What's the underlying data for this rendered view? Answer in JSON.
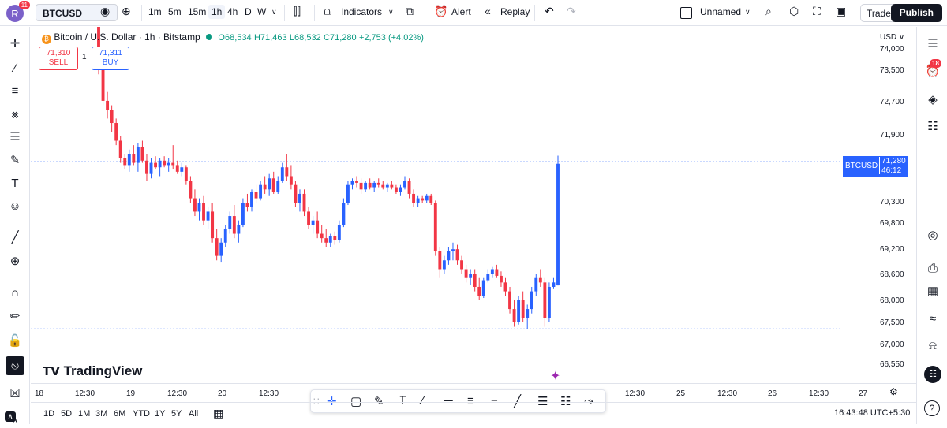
{
  "header": {
    "avatar_letter": "R",
    "avatar_badge": "11",
    "symbol": "BTCUSD",
    "timeframes": [
      "1m",
      "5m",
      "15m",
      "1h",
      "4h",
      "D",
      "W"
    ],
    "active_timeframe": "1h",
    "indicators_label": "Indicators",
    "alert_label": "Alert",
    "replay_label": "Replay",
    "layout_name": "Unnamed",
    "trade_label": "Trade",
    "publish_label": "Publish"
  },
  "legend": {
    "title": "Bitcoin / U.S. Dollar · 1h · Bitstamp",
    "open": "O68,534",
    "high": "H71,463",
    "low": "L68,532",
    "close": "C71,280",
    "change": "+2,753 (+4.02%)"
  },
  "trade_panel": {
    "sell_price": "71,310",
    "sell_label": "SELL",
    "qty": "1",
    "buy_price": "71,311",
    "buy_label": "BUY"
  },
  "price_axis": {
    "currency": "USD",
    "labels": [
      "74,000",
      "73,500",
      "72,700",
      "71,900",
      "70,300",
      "69,800",
      "69,200",
      "68,600",
      "68,000",
      "67,500",
      "67,000",
      "66,550"
    ],
    "current_symbol": "BTCUSD",
    "current_price": "71,280",
    "countdown": "46:12"
  },
  "time_axis": {
    "labels": [
      "18",
      "12:30",
      "19",
      "12:30",
      "20",
      "12:30",
      "12:30",
      "25",
      "12:30",
      "26",
      "12:30",
      "27"
    ]
  },
  "ranges": [
    "1D",
    "5D",
    "1M",
    "3M",
    "6M",
    "YTD",
    "1Y",
    "5Y",
    "All"
  ],
  "clock": "16:43:48 UTC+5:30",
  "branding": "TradingView",
  "right_badge": "18",
  "colors": {
    "up": "#2962ff",
    "down": "#f23645",
    "accent": "#2962ff"
  },
  "chart_data": {
    "type": "candlestick",
    "note_series": "BTCUSD 1h",
    "ohlc": [
      [
        74600,
        74700,
        73300,
        73400
      ],
      [
        73400,
        73600,
        72600,
        72700
      ],
      [
        72700,
        72900,
        72300,
        72500
      ],
      [
        72500,
        72600,
        72000,
        72200
      ],
      [
        72200,
        72300,
        71700,
        71800
      ],
      [
        71800,
        71900,
        71300,
        71400
      ],
      [
        71400,
        71500,
        71150,
        71250
      ],
      [
        71250,
        71600,
        71100,
        71500
      ],
      [
        71500,
        71700,
        71250,
        71300
      ],
      [
        71300,
        71750,
        71100,
        71650
      ],
      [
        71650,
        71800,
        71300,
        71350
      ],
      [
        71350,
        71500,
        70900,
        71050
      ],
      [
        71050,
        71400,
        70950,
        71300
      ],
      [
        71300,
        71450,
        71150,
        71200
      ],
      [
        71200,
        71400,
        71000,
        71350
      ],
      [
        71350,
        71450,
        71200,
        71250
      ],
      [
        71250,
        71400,
        71100,
        71300
      ],
      [
        71300,
        71700,
        71150,
        71250
      ],
      [
        71250,
        71350,
        71050,
        71100
      ],
      [
        71100,
        71300,
        71000,
        71200
      ],
      [
        71200,
        71250,
        70800,
        70900
      ],
      [
        70900,
        71000,
        70400,
        70500
      ],
      [
        70500,
        70700,
        70100,
        70200
      ],
      [
        70200,
        70500,
        70000,
        70400
      ],
      [
        70400,
        70550,
        69900,
        70000
      ],
      [
        70000,
        70300,
        69800,
        70200
      ],
      [
        70200,
        70400,
        69500,
        69600
      ],
      [
        69600,
        69800,
        69100,
        69200
      ],
      [
        69200,
        69600,
        69050,
        69500
      ],
      [
        69500,
        69900,
        69400,
        69800
      ],
      [
        69800,
        70200,
        69700,
        70100
      ],
      [
        70100,
        70350,
        69600,
        69700
      ],
      [
        69700,
        70000,
        69500,
        69900
      ],
      [
        69900,
        70500,
        69850,
        70400
      ],
      [
        70400,
        70600,
        70200,
        70300
      ],
      [
        70300,
        70700,
        70200,
        70650
      ],
      [
        70650,
        70800,
        70400,
        70500
      ],
      [
        70500,
        70900,
        70450,
        70800
      ],
      [
        70800,
        71000,
        70600,
        70700
      ],
      [
        70700,
        71050,
        70550,
        70950
      ],
      [
        70950,
        71100,
        70600,
        70650
      ],
      [
        70650,
        71000,
        70600,
        70900
      ],
      [
        70900,
        71300,
        70850,
        71200
      ],
      [
        71200,
        71500,
        70900,
        71000
      ],
      [
        71000,
        71250,
        70700,
        70800
      ],
      [
        70800,
        70900,
        70300,
        70400
      ],
      [
        70400,
        70700,
        70200,
        70600
      ],
      [
        70600,
        70700,
        70100,
        70200
      ],
      [
        70200,
        70300,
        69800,
        69900
      ],
      [
        69900,
        70100,
        69700,
        70000
      ],
      [
        70000,
        70200,
        69600,
        69700
      ],
      [
        69700,
        69900,
        69500,
        69600
      ],
      [
        69600,
        69800,
        69400,
        69500
      ],
      [
        69500,
        69700,
        69400,
        69650
      ],
      [
        69650,
        69750,
        69450,
        69550
      ],
      [
        69550,
        70000,
        69500,
        69900
      ],
      [
        69900,
        70500,
        69850,
        70400
      ],
      [
        70400,
        70900,
        70350,
        70800
      ],
      [
        70800,
        70950,
        70700,
        70900
      ],
      [
        70900,
        71000,
        70750,
        70850
      ],
      [
        70850,
        70950,
        70600,
        70700
      ],
      [
        70700,
        70900,
        70650,
        70850
      ],
      [
        70850,
        70950,
        70700,
        70750
      ],
      [
        70750,
        70900,
        70650,
        70850
      ],
      [
        70850,
        70950,
        70750,
        70800
      ],
      [
        70800,
        70900,
        70700,
        70750
      ],
      [
        70750,
        70850,
        70650,
        70800
      ],
      [
        70800,
        70900,
        70700,
        70750
      ],
      [
        70750,
        70800,
        70600,
        70650
      ],
      [
        70650,
        70800,
        70550,
        70750
      ],
      [
        70750,
        71000,
        70700,
        70900
      ],
      [
        70900,
        70950,
        70500,
        70600
      ],
      [
        70600,
        70700,
        70300,
        70400
      ],
      [
        70400,
        70550,
        70300,
        70500
      ],
      [
        70500,
        70550,
        70400,
        70450
      ],
      [
        70450,
        70600,
        70400,
        70550
      ],
      [
        70550,
        70600,
        70350,
        70400
      ],
      [
        70400,
        70450,
        69200,
        69300
      ],
      [
        69300,
        69400,
        68700,
        68900
      ],
      [
        68900,
        69200,
        68800,
        69100
      ],
      [
        69100,
        69400,
        69000,
        69300
      ],
      [
        69300,
        69500,
        69100,
        69350
      ],
      [
        69350,
        69450,
        69000,
        69100
      ],
      [
        69100,
        69200,
        68800,
        68900
      ],
      [
        68900,
        69000,
        68600,
        68700
      ],
      [
        68700,
        68900,
        68550,
        68800
      ],
      [
        68800,
        68900,
        68400,
        68500
      ],
      [
        68500,
        68700,
        68200,
        68300
      ],
      [
        68300,
        68700,
        68250,
        68650
      ],
      [
        68650,
        68900,
        68600,
        68800
      ],
      [
        68800,
        68950,
        68700,
        68900
      ],
      [
        68900,
        69000,
        68700,
        68750
      ],
      [
        68750,
        68850,
        68500,
        68600
      ],
      [
        68600,
        68700,
        68300,
        68400
      ],
      [
        68400,
        68500,
        67900,
        68000
      ],
      [
        68000,
        68200,
        67600,
        67700
      ],
      [
        67700,
        68300,
        67650,
        68200
      ],
      [
        68200,
        68400,
        67700,
        67800
      ],
      [
        67800,
        68100,
        67550,
        68000
      ],
      [
        68000,
        68500,
        67900,
        68400
      ],
      [
        68400,
        68800,
        68300,
        68700
      ],
      [
        68700,
        68900,
        68500,
        68600
      ],
      [
        68600,
        68700,
        67600,
        67800
      ],
      [
        67800,
        68600,
        67700,
        68500
      ],
      [
        68500,
        68700,
        68450,
        68600
      ],
      [
        68534,
        71463,
        68532,
        71280
      ]
    ],
    "ylim": [
      66400,
      74300
    ]
  }
}
